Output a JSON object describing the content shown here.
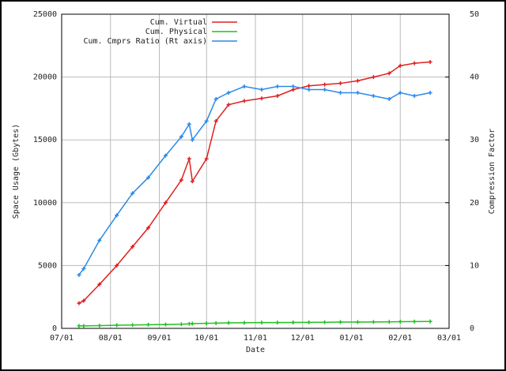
{
  "chart_data": {
    "type": "line",
    "xlabel": "Date",
    "ylabel": "Space Usage (Gbytes)",
    "y2label": "Compression Factor",
    "x": [
      "07/12",
      "07/15",
      "07/25",
      "08/05",
      "08/15",
      "08/25",
      "09/05",
      "09/15",
      "09/20",
      "09/22",
      "10/01",
      "10/07",
      "10/15",
      "10/25",
      "11/05",
      "11/15",
      "11/25",
      "12/05",
      "12/15",
      "12/25",
      "01/05",
      "01/15",
      "01/25",
      "02/01",
      "02/10",
      "02/20"
    ],
    "xlim": [
      "07/01",
      "03/01"
    ],
    "xticks": [
      "07/01",
      "08/01",
      "09/01",
      "10/01",
      "11/01",
      "12/01",
      "01/01",
      "02/01",
      "03/01"
    ],
    "ylim": [
      0,
      25000
    ],
    "yticks": [
      0,
      5000,
      10000,
      15000,
      20000,
      25000
    ],
    "y2lim": [
      0,
      50
    ],
    "y2ticks": [
      0,
      10,
      20,
      30,
      40,
      50
    ],
    "grid": true,
    "legend": "upper right",
    "series": [
      {
        "name": "Cum. Virtual",
        "color": "#e02020",
        "values": [
          2000,
          2200,
          3500,
          5000,
          6500,
          8000,
          10000,
          11800,
          13500,
          11700,
          13500,
          16500,
          17800,
          18100,
          18300,
          18500,
          19000,
          19300,
          19400,
          19500,
          19700,
          20000,
          20300,
          20900,
          21100,
          21200
        ]
      },
      {
        "name": "Cum. Physical",
        "color": "#22c022",
        "values": [
          200,
          200,
          220,
          250,
          270,
          290,
          310,
          330,
          360,
          380,
          400,
          420,
          440,
          450,
          460,
          460,
          470,
          480,
          490,
          500,
          500,
          510,
          520,
          530,
          540,
          550
        ]
      },
      {
        "name": "Cum. Cmprs Ratio (Rt axis)",
        "color": "#2a8ae8",
        "axis": "y2",
        "values": [
          8.5,
          9.5,
          14,
          18,
          21.5,
          24,
          27.5,
          30.5,
          32.5,
          30,
          33,
          36.5,
          37.5,
          38.5,
          38,
          38.5,
          38.5,
          38,
          38,
          37.5,
          37.5,
          37,
          36.5,
          37.5,
          37,
          37.5
        ]
      }
    ]
  }
}
